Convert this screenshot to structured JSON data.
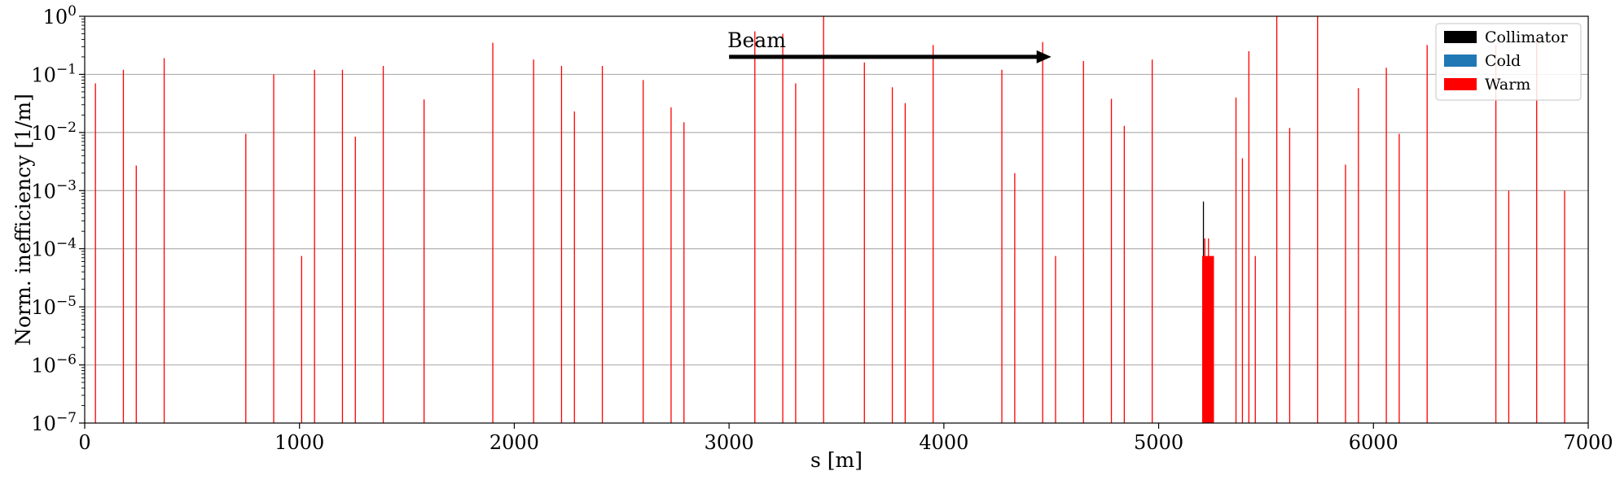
{
  "chart_data": {
    "type": "bar",
    "title": "",
    "xlabel": "s [m]",
    "ylabel": "Norm. inefficiency [1/m]",
    "x_scale": "linear",
    "y_scale": "log",
    "xlim": [
      0,
      7000
    ],
    "ylim": [
      1e-07,
      1
    ],
    "x_ticks": [
      0,
      1000,
      2000,
      3000,
      4000,
      5000,
      6000,
      7000
    ],
    "x_tick_labels": [
      "0",
      "1000",
      "2000",
      "3000",
      "4000",
      "5000",
      "6000",
      "7000"
    ],
    "y_ticks": [
      1e-07,
      1e-06,
      1e-05,
      0.0001,
      0.001,
      0.01,
      0.1,
      1
    ],
    "y_tick_labels": [
      {
        "base": "10",
        "exp": "−7"
      },
      {
        "base": "10",
        "exp": "−6"
      },
      {
        "base": "10",
        "exp": "−5"
      },
      {
        "base": "10",
        "exp": "−4"
      },
      {
        "base": "10",
        "exp": "−3"
      },
      {
        "base": "10",
        "exp": "−2"
      },
      {
        "base": "10",
        "exp": "−1"
      },
      {
        "base": "10",
        "exp": "0"
      }
    ],
    "grid": "horizontal",
    "legend_position": "top-right",
    "legend": [
      {
        "name": "Collimator",
        "color": "#000000"
      },
      {
        "name": "Cold",
        "color": "#1f77b4"
      },
      {
        "name": "Warm",
        "color": "#ff0000"
      }
    ],
    "annotation": {
      "text": "Beam",
      "arrow_from_s": 3000,
      "arrow_to_s": 4500,
      "arrow_y": 0.2
    },
    "series": [
      {
        "name": "Collimator",
        "color": "#000000",
        "points": [
          {
            "s": 5208,
            "value": 0.00065,
            "width": 4
          }
        ]
      },
      {
        "name": "Cold",
        "color": "#1f77b4",
        "points": []
      },
      {
        "name": "Warm",
        "color": "#ff0000",
        "points": [
          {
            "s": 50,
            "value": 0.07
          },
          {
            "s": 180,
            "value": 0.12
          },
          {
            "s": 240,
            "value": 0.0027
          },
          {
            "s": 370,
            "value": 0.19
          },
          {
            "s": 750,
            "value": 0.0095
          },
          {
            "s": 880,
            "value": 0.1
          },
          {
            "s": 1010,
            "value": 7.5e-05
          },
          {
            "s": 1070,
            "value": 0.12
          },
          {
            "s": 1200,
            "value": 0.12
          },
          {
            "s": 1260,
            "value": 0.0085
          },
          {
            "s": 1390,
            "value": 0.14
          },
          {
            "s": 1580,
            "value": 0.037
          },
          {
            "s": 1900,
            "value": 0.35
          },
          {
            "s": 2090,
            "value": 0.18
          },
          {
            "s": 2220,
            "value": 0.14
          },
          {
            "s": 2280,
            "value": 0.023
          },
          {
            "s": 2410,
            "value": 0.14
          },
          {
            "s": 2600,
            "value": 0.08
          },
          {
            "s": 2730,
            "value": 0.027
          },
          {
            "s": 2790,
            "value": 0.015
          },
          {
            "s": 3120,
            "value": 0.55
          },
          {
            "s": 3250,
            "value": 0.5
          },
          {
            "s": 3310,
            "value": 0.07
          },
          {
            "s": 3440,
            "value": 1.0
          },
          {
            "s": 3630,
            "value": 0.16
          },
          {
            "s": 3760,
            "value": 0.06
          },
          {
            "s": 3820,
            "value": 0.032
          },
          {
            "s": 3950,
            "value": 0.32
          },
          {
            "s": 4270,
            "value": 0.12
          },
          {
            "s": 4330,
            "value": 0.002
          },
          {
            "s": 4460,
            "value": 0.36
          },
          {
            "s": 4520,
            "value": 7.5e-05
          },
          {
            "s": 4650,
            "value": 0.17
          },
          {
            "s": 4780,
            "value": 0.038
          },
          {
            "s": 4840,
            "value": 0.013
          },
          {
            "s": 4970,
            "value": 0.18
          },
          {
            "s": 5215,
            "value": 0.00015
          },
          {
            "s": 5232,
            "value": 0.00015
          },
          {
            "s": 5230,
            "value": 7.5e-05,
            "width": 55
          },
          {
            "s": 5360,
            "value": 0.04
          },
          {
            "s": 5390,
            "value": 0.0036
          },
          {
            "s": 5420,
            "value": 0.25
          },
          {
            "s": 5450,
            "value": 7.5e-05
          },
          {
            "s": 5550,
            "value": 1.0
          },
          {
            "s": 5610,
            "value": 0.012
          },
          {
            "s": 5740,
            "value": 1.0
          },
          {
            "s": 5870,
            "value": 0.0028
          },
          {
            "s": 5930,
            "value": 0.058
          },
          {
            "s": 6060,
            "value": 0.13
          },
          {
            "s": 6120,
            "value": 0.0095
          },
          {
            "s": 6250,
            "value": 0.32
          },
          {
            "s": 6570,
            "value": 0.32
          },
          {
            "s": 6630,
            "value": 0.001
          },
          {
            "s": 6760,
            "value": 0.37
          },
          {
            "s": 6890,
            "value": 0.001
          }
        ]
      }
    ]
  }
}
